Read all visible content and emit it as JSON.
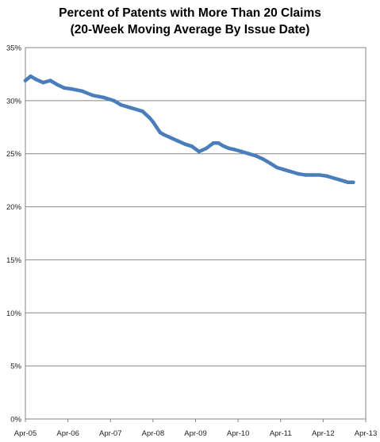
{
  "chart_data": {
    "type": "line",
    "title": "Percent of Patents with More Than 20 Claims",
    "subtitle": "(20-Week Moving Average By Issue Date)",
    "xlabel": "",
    "ylabel": "",
    "x_tick_labels": [
      "Apr-05",
      "Apr-06",
      "Apr-07",
      "Apr-08",
      "Apr-09",
      "Apr-10",
      "Apr-11",
      "Apr-12",
      "Apr-13"
    ],
    "y_tick_labels": [
      "0%",
      "5%",
      "10%",
      "15%",
      "20%",
      "25%",
      "30%",
      "35%"
    ],
    "ylim": [
      0,
      35
    ],
    "xlim": [
      "2005-04-01",
      "2013-04-01"
    ],
    "grid": true,
    "legend": "none",
    "line_color": "#4a7ebb",
    "series": [
      {
        "x": [
          "2005-04-01",
          "2005-05-15",
          "2005-07-01",
          "2005-09-01",
          "2005-11-01",
          "2006-01-01",
          "2006-03-01",
          "2006-05-01",
          "2006-08-01",
          "2006-11-01",
          "2007-02-01",
          "2007-05-01",
          "2007-07-01",
          "2007-10-01",
          "2008-01-01",
          "2008-03-01",
          "2008-04-01",
          "2008-05-01",
          "2008-06-01",
          "2008-07-01",
          "2008-09-01",
          "2008-11-01",
          "2009-01-01",
          "2009-03-01",
          "2009-05-01",
          "2009-07-01",
          "2009-09-01",
          "2009-10-15",
          "2009-12-01",
          "2010-01-15",
          "2010-03-01",
          "2010-05-01",
          "2010-07-01",
          "2010-09-01",
          "2010-11-01",
          "2011-01-01",
          "2011-03-01",
          "2011-05-01",
          "2011-07-01",
          "2011-09-01",
          "2011-11-01",
          "2012-01-01",
          "2012-03-01",
          "2012-05-01",
          "2012-07-01",
          "2012-09-01",
          "2012-11-01",
          "2012-12-15"
        ],
        "values": [
          31.9,
          32.3,
          32.0,
          31.7,
          31.9,
          31.5,
          31.2,
          31.1,
          30.9,
          30.5,
          30.3,
          30.0,
          29.6,
          29.3,
          29.0,
          28.4,
          28.0,
          27.5,
          27.0,
          26.8,
          26.5,
          26.2,
          25.9,
          25.7,
          25.2,
          25.5,
          26.0,
          26.0,
          25.7,
          25.5,
          25.4,
          25.2,
          25.0,
          24.8,
          24.5,
          24.1,
          23.7,
          23.5,
          23.3,
          23.1,
          23.0,
          23.0,
          23.0,
          22.9,
          22.7,
          22.5,
          22.3,
          22.3
        ]
      }
    ]
  }
}
